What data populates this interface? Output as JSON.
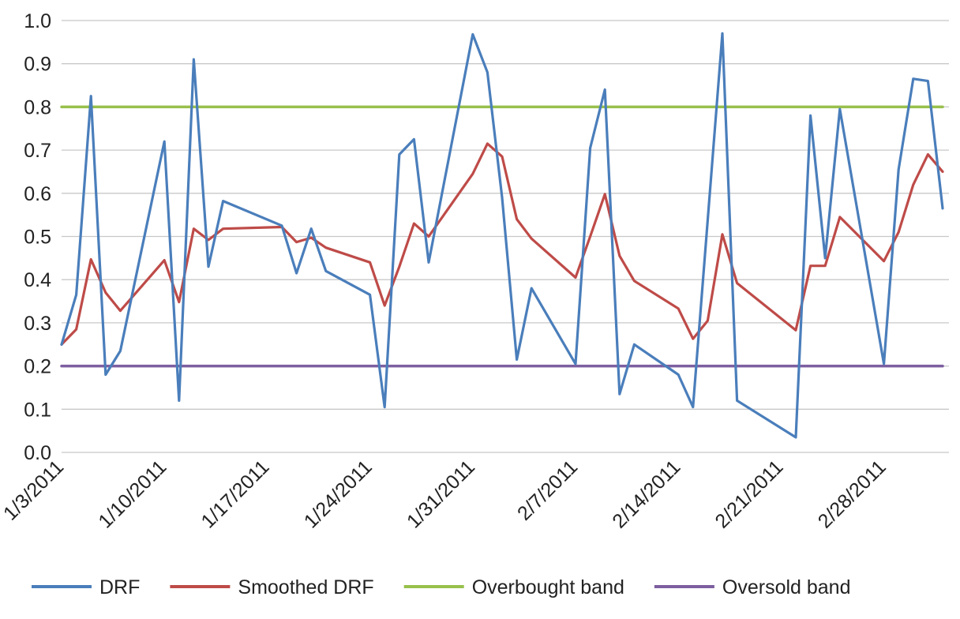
{
  "chart_data": {
    "type": "line",
    "x_type": "date",
    "xlim": [
      "1/3/2011",
      "3/4/2011"
    ],
    "ylim": [
      0.0,
      1.0
    ],
    "yticks": [
      "0.0",
      "0.1",
      "0.2",
      "0.3",
      "0.4",
      "0.5",
      "0.6",
      "0.7",
      "0.8",
      "0.9",
      "1.0"
    ],
    "xticks": [
      "1/3/2011",
      "1/10/2011",
      "1/17/2011",
      "1/24/2011",
      "1/31/2011",
      "2/7/2011",
      "2/14/2011",
      "2/21/2011",
      "2/28/2011"
    ],
    "grid": true,
    "legend_position": "bottom",
    "series": [
      {
        "name": "DRF",
        "color": "#4a7ebb",
        "points": [
          [
            "1/3/2011",
            0.25
          ],
          [
            "1/4/2011",
            0.365
          ],
          [
            "1/5/2011",
            0.825
          ],
          [
            "1/6/2011",
            0.18
          ],
          [
            "1/7/2011",
            0.235
          ],
          [
            "1/10/2011",
            0.72
          ],
          [
            "1/11/2011",
            0.12
          ],
          [
            "1/12/2011",
            0.91
          ],
          [
            "1/13/2011",
            0.43
          ],
          [
            "1/14/2011",
            0.582
          ],
          [
            "1/18/2011",
            0.525
          ],
          [
            "1/19/2011",
            0.415
          ],
          [
            "1/20/2011",
            0.518
          ],
          [
            "1/21/2011",
            0.42
          ],
          [
            "1/24/2011",
            0.365
          ],
          [
            "1/25/2011",
            0.105
          ],
          [
            "1/26/2011",
            0.69
          ],
          [
            "1/27/2011",
            0.725
          ],
          [
            "1/28/2011",
            0.44
          ],
          [
            "1/31/2011",
            0.968
          ],
          [
            "2/1/2011",
            0.88
          ],
          [
            "2/2/2011",
            0.59
          ],
          [
            "2/3/2011",
            0.215
          ],
          [
            "2/4/2011",
            0.38
          ],
          [
            "2/7/2011",
            0.205
          ],
          [
            "2/8/2011",
            0.705
          ],
          [
            "2/9/2011",
            0.84
          ],
          [
            "2/10/2011",
            0.135
          ],
          [
            "2/11/2011",
            0.25
          ],
          [
            "2/14/2011",
            0.18
          ],
          [
            "2/15/2011",
            0.105
          ],
          [
            "2/17/2011",
            0.97
          ],
          [
            "2/18/2011",
            0.12
          ],
          [
            "2/22/2011",
            0.035
          ],
          [
            "2/23/2011",
            0.78
          ],
          [
            "2/24/2011",
            0.45
          ],
          [
            "2/25/2011",
            0.795
          ],
          [
            "2/28/2011",
            0.205
          ],
          [
            "3/1/2011",
            0.655
          ],
          [
            "3/2/2011",
            0.865
          ],
          [
            "3/3/2011",
            0.86
          ],
          [
            "3/4/2011",
            0.565
          ]
        ]
      },
      {
        "name": "Smoothed DRF",
        "color": "#be4b48",
        "points": [
          [
            "1/3/2011",
            0.25
          ],
          [
            "1/4/2011",
            0.285
          ],
          [
            "1/5/2011",
            0.447
          ],
          [
            "1/6/2011",
            0.37
          ],
          [
            "1/7/2011",
            0.328
          ],
          [
            "1/10/2011",
            0.445
          ],
          [
            "1/11/2011",
            0.348
          ],
          [
            "1/12/2011",
            0.518
          ],
          [
            "1/13/2011",
            0.492
          ],
          [
            "1/14/2011",
            0.518
          ],
          [
            "1/18/2011",
            0.522
          ],
          [
            "1/19/2011",
            0.487
          ],
          [
            "1/20/2011",
            0.497
          ],
          [
            "1/21/2011",
            0.474
          ],
          [
            "1/24/2011",
            0.44
          ],
          [
            "1/25/2011",
            0.34
          ],
          [
            "1/26/2011",
            0.43
          ],
          [
            "1/27/2011",
            0.53
          ],
          [
            "1/28/2011",
            0.5
          ],
          [
            "1/31/2011",
            0.645
          ],
          [
            "2/1/2011",
            0.715
          ],
          [
            "2/2/2011",
            0.685
          ],
          [
            "2/3/2011",
            0.54
          ],
          [
            "2/4/2011",
            0.495
          ],
          [
            "2/7/2011",
            0.405
          ],
          [
            "2/8/2011",
            0.5
          ],
          [
            "2/9/2011",
            0.598
          ],
          [
            "2/10/2011",
            0.455
          ],
          [
            "2/11/2011",
            0.397
          ],
          [
            "2/14/2011",
            0.333
          ],
          [
            "2/15/2011",
            0.263
          ],
          [
            "2/16/2011",
            0.305
          ],
          [
            "2/17/2011",
            0.505
          ],
          [
            "2/18/2011",
            0.392
          ],
          [
            "2/22/2011",
            0.283
          ],
          [
            "2/23/2011",
            0.432
          ],
          [
            "2/24/2011",
            0.432
          ],
          [
            "2/25/2011",
            0.545
          ],
          [
            "2/28/2011",
            0.443
          ],
          [
            "3/1/2011",
            0.51
          ],
          [
            "3/2/2011",
            0.62
          ],
          [
            "3/3/2011",
            0.69
          ],
          [
            "3/4/2011",
            0.65
          ]
        ]
      },
      {
        "name": "Overbought band",
        "color": "#98c04c",
        "points": [
          [
            "1/3/2011",
            0.8
          ],
          [
            "3/4/2011",
            0.8
          ]
        ]
      },
      {
        "name": "Oversold band",
        "color": "#7d5fa0",
        "points": [
          [
            "1/3/2011",
            0.2
          ],
          [
            "3/4/2011",
            0.2
          ]
        ]
      }
    ]
  }
}
